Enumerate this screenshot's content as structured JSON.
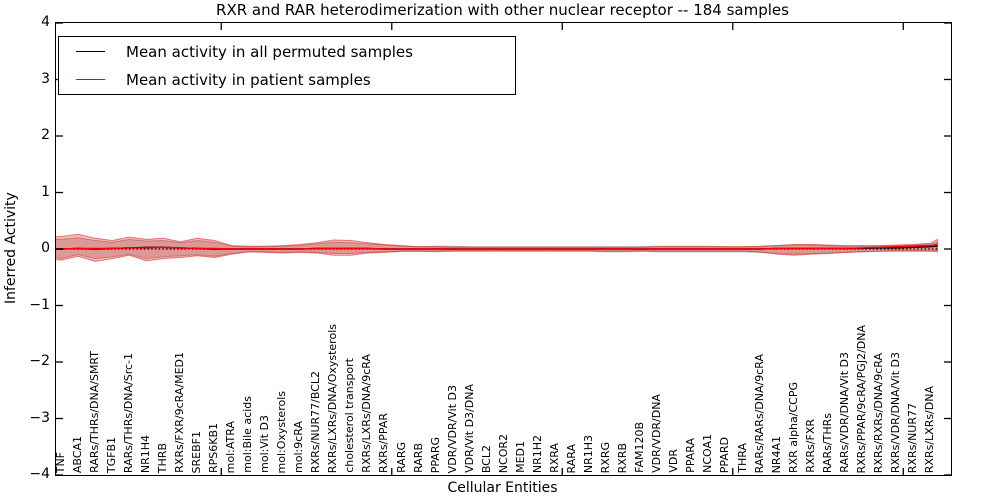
{
  "title": "RXR and RAR heterodimerization with other nuclear receptor -- 184 samples",
  "axes": {
    "xlabel": "Cellular Entities",
    "ylabel": "Inferred Activity",
    "ylim": [
      -4,
      4
    ],
    "yticks": [
      {
        "label": "4",
        "value": 4
      },
      {
        "label": "3",
        "value": 3
      },
      {
        "label": "2",
        "value": 2
      },
      {
        "label": "1",
        "value": 1
      },
      {
        "label": "0",
        "value": 0
      },
      {
        "label": "−1",
        "value": -1
      },
      {
        "label": "−2",
        "value": -2
      },
      {
        "label": "−3",
        "value": -3
      },
      {
        "label": "−4",
        "value": -4
      }
    ],
    "xtick_positions": [
      9.4,
      19.4,
      29.4,
      39.4,
      49.4
    ],
    "grid": false
  },
  "legend": {
    "position": "upper-left",
    "items": [
      {
        "label": "Mean activity in all permuted samples",
        "color": "#000000"
      },
      {
        "label": "Mean activity in patient samples",
        "color": "#ff0000"
      }
    ]
  },
  "colors": {
    "permuted_line": "#000000",
    "patient_line": "#ff0000",
    "permuted_band_fill": "rgba(130,130,130,0.40)",
    "permuted_band_edge": "rgba(105,105,105,0.55)",
    "patient_band_fill": "rgba(255,45,45,0.33)",
    "patient_band_edge": "rgba(215,40,40,0.60)",
    "zero_line": "#000000",
    "axis": "#000000"
  },
  "chart_data": {
    "type": "line",
    "title": "RXR and RAR heterodimerization with other nuclear receptor -- 184 samples",
    "xlabel": "Cellular Entities",
    "ylabel": "Inferred Activity",
    "ylim": [
      -4,
      4
    ],
    "legend_position": "upper left",
    "categories": [
      "TNF",
      "ABCA1",
      "RARs/THRs/DNA/SMRT",
      "TGFB1",
      "RARs/THRs/DNA/Src-1",
      "NR1H4",
      "THRB",
      "RXRs/FXR/9cRA/MED1",
      "SREBF1",
      "RPS6KB1",
      "mol:ATRA",
      "mol:Bile acids",
      "mol:Vit D3",
      "mol:Oxysterols",
      "mol:9cRA",
      "RXRs/NUR77/BCL2",
      "RXRs/LXRs/DNA/Oxysterols",
      "cholesterol transport",
      "RXRs/LXRs/DNA/9cRA",
      "RXRs/PPAR",
      "RARG",
      "RARB",
      "PPARG",
      "VDR/VDR/Vit D3",
      "VDR/Vit D3/DNA",
      "BCL2",
      "NCOR2",
      "MED1",
      "NR1H2",
      "RXRA",
      "RARA",
      "NR1H3",
      "RXRG",
      "RXRB",
      "FAM120B",
      "VDR/VDR/DNA",
      "VDR",
      "PPARA",
      "NCOA1",
      "PPARD",
      "THRA",
      "RARs/RARs/DNA/9cRA",
      "NR4A1",
      "RXR alpha/CCPG",
      "RXRs/FXR",
      "RARs/THRs",
      "RARs/VDR/DNA/Vit D3",
      "RXRs/PPAR/9cRA/PGJ2/DNA",
      "RXRs/RXRs/DNA/9cRA",
      "RXRs/VDR/DNA/Vit D3",
      "RXRs/NUR77",
      "RXRs/LXRs/DNA"
    ],
    "x": [
      -0.35,
      0,
      1,
      2,
      3,
      4,
      5,
      6,
      7,
      8,
      9,
      10,
      11,
      12,
      13,
      14,
      15,
      16,
      17,
      18,
      19,
      20,
      21,
      22,
      23,
      24,
      25,
      26,
      27,
      28,
      29,
      30,
      31,
      32,
      33,
      34,
      35,
      36,
      37,
      38,
      39,
      40,
      41,
      42,
      43,
      44,
      45,
      46,
      47,
      48,
      49,
      50,
      51,
      51.4
    ],
    "series": [
      {
        "name": "Mean activity in all permuted samples",
        "color": "#000000",
        "values": [
          0.0,
          0.0,
          0.01,
          0.0,
          0.01,
          0.02,
          0.03,
          0.03,
          0.02,
          0.01,
          0.0,
          0.0,
          0.0,
          0.0,
          0.0,
          0.0,
          0.01,
          0.01,
          0.01,
          0.01,
          0.0,
          0.0,
          0.0,
          0.0,
          0.0,
          0.0,
          0.0,
          0.0,
          0.0,
          0.0,
          0.0,
          0.0,
          0.0,
          0.0,
          0.0,
          0.0,
          0.0,
          0.0,
          0.0,
          0.0,
          0.0,
          0.0,
          0.0,
          0.01,
          0.01,
          0.01,
          0.01,
          0.01,
          0.01,
          0.02,
          0.02,
          0.03,
          0.04,
          0.05
        ]
      },
      {
        "name": "Mean activity in patient samples",
        "color": "#ff0000",
        "values": [
          0.0,
          0.0,
          0.01,
          0.01,
          0.01,
          0.02,
          0.02,
          0.03,
          0.02,
          0.01,
          0.01,
          0.0,
          0.0,
          0.0,
          0.0,
          0.0,
          0.01,
          0.01,
          0.01,
          0.01,
          0.0,
          0.0,
          0.0,
          0.0,
          0.0,
          0.0,
          0.0,
          0.0,
          0.0,
          0.0,
          0.0,
          0.0,
          0.0,
          0.0,
          0.0,
          0.0,
          0.0,
          0.0,
          0.0,
          0.0,
          0.0,
          0.0,
          0.0,
          0.01,
          0.01,
          0.01,
          0.01,
          0.01,
          0.02,
          0.03,
          0.04,
          0.05,
          0.06,
          0.08
        ]
      }
    ],
    "bands": [
      {
        "name": "permuted-activity-range",
        "upper": [
          0.17,
          0.17,
          0.2,
          0.15,
          0.12,
          0.17,
          0.14,
          0.15,
          0.11,
          0.15,
          0.12,
          0.05,
          0.04,
          0.04,
          0.05,
          0.06,
          0.09,
          0.12,
          0.11,
          0.09,
          0.07,
          0.05,
          0.04,
          0.05,
          0.05,
          0.04,
          0.04,
          0.04,
          0.04,
          0.04,
          0.04,
          0.04,
          0.04,
          0.04,
          0.04,
          0.04,
          0.05,
          0.05,
          0.05,
          0.05,
          0.04,
          0.04,
          0.05,
          0.06,
          0.07,
          0.07,
          0.06,
          0.05,
          0.05,
          0.05,
          0.06,
          0.07,
          0.08,
          0.12
        ],
        "lower": [
          -0.15,
          -0.17,
          -0.1,
          -0.17,
          -0.14,
          -0.09,
          -0.17,
          -0.14,
          -0.12,
          -0.1,
          -0.13,
          -0.08,
          -0.05,
          -0.05,
          -0.06,
          -0.05,
          -0.06,
          -0.08,
          -0.08,
          -0.06,
          -0.05,
          -0.04,
          -0.04,
          -0.05,
          -0.04,
          -0.04,
          -0.04,
          -0.04,
          -0.04,
          -0.04,
          -0.04,
          -0.04,
          -0.04,
          -0.05,
          -0.05,
          -0.04,
          -0.05,
          -0.05,
          -0.05,
          -0.05,
          -0.05,
          -0.05,
          -0.06,
          -0.08,
          -0.09,
          -0.08,
          -0.07,
          -0.06,
          -0.05,
          -0.04,
          -0.04,
          -0.04,
          -0.04,
          -0.05
        ]
      },
      {
        "name": "patient-activity-range",
        "upper": [
          0.22,
          0.22,
          0.26,
          0.19,
          0.15,
          0.21,
          0.17,
          0.19,
          0.13,
          0.19,
          0.15,
          0.06,
          0.05,
          0.05,
          0.06,
          0.08,
          0.11,
          0.16,
          0.15,
          0.11,
          0.08,
          0.06,
          0.04,
          0.04,
          0.03,
          0.03,
          0.03,
          0.03,
          0.03,
          0.03,
          0.03,
          0.03,
          0.03,
          0.03,
          0.03,
          0.03,
          0.04,
          0.04,
          0.04,
          0.04,
          0.04,
          0.04,
          0.04,
          0.06,
          0.08,
          0.08,
          0.07,
          0.06,
          0.06,
          0.06,
          0.07,
          0.08,
          0.1,
          0.17
        ],
        "lower": [
          -0.18,
          -0.2,
          -0.13,
          -0.22,
          -0.17,
          -0.11,
          -0.21,
          -0.17,
          -0.15,
          -0.12,
          -0.15,
          -0.09,
          -0.05,
          -0.06,
          -0.07,
          -0.06,
          -0.07,
          -0.11,
          -0.11,
          -0.07,
          -0.06,
          -0.04,
          -0.04,
          -0.04,
          -0.03,
          -0.03,
          -0.03,
          -0.03,
          -0.03,
          -0.03,
          -0.03,
          -0.03,
          -0.03,
          -0.04,
          -0.04,
          -0.03,
          -0.04,
          -0.04,
          -0.04,
          -0.04,
          -0.04,
          -0.04,
          -0.05,
          -0.09,
          -0.11,
          -0.09,
          -0.08,
          -0.06,
          -0.05,
          -0.04,
          -0.03,
          -0.03,
          -0.03,
          -0.03
        ]
      }
    ],
    "zero_line": 0
  }
}
